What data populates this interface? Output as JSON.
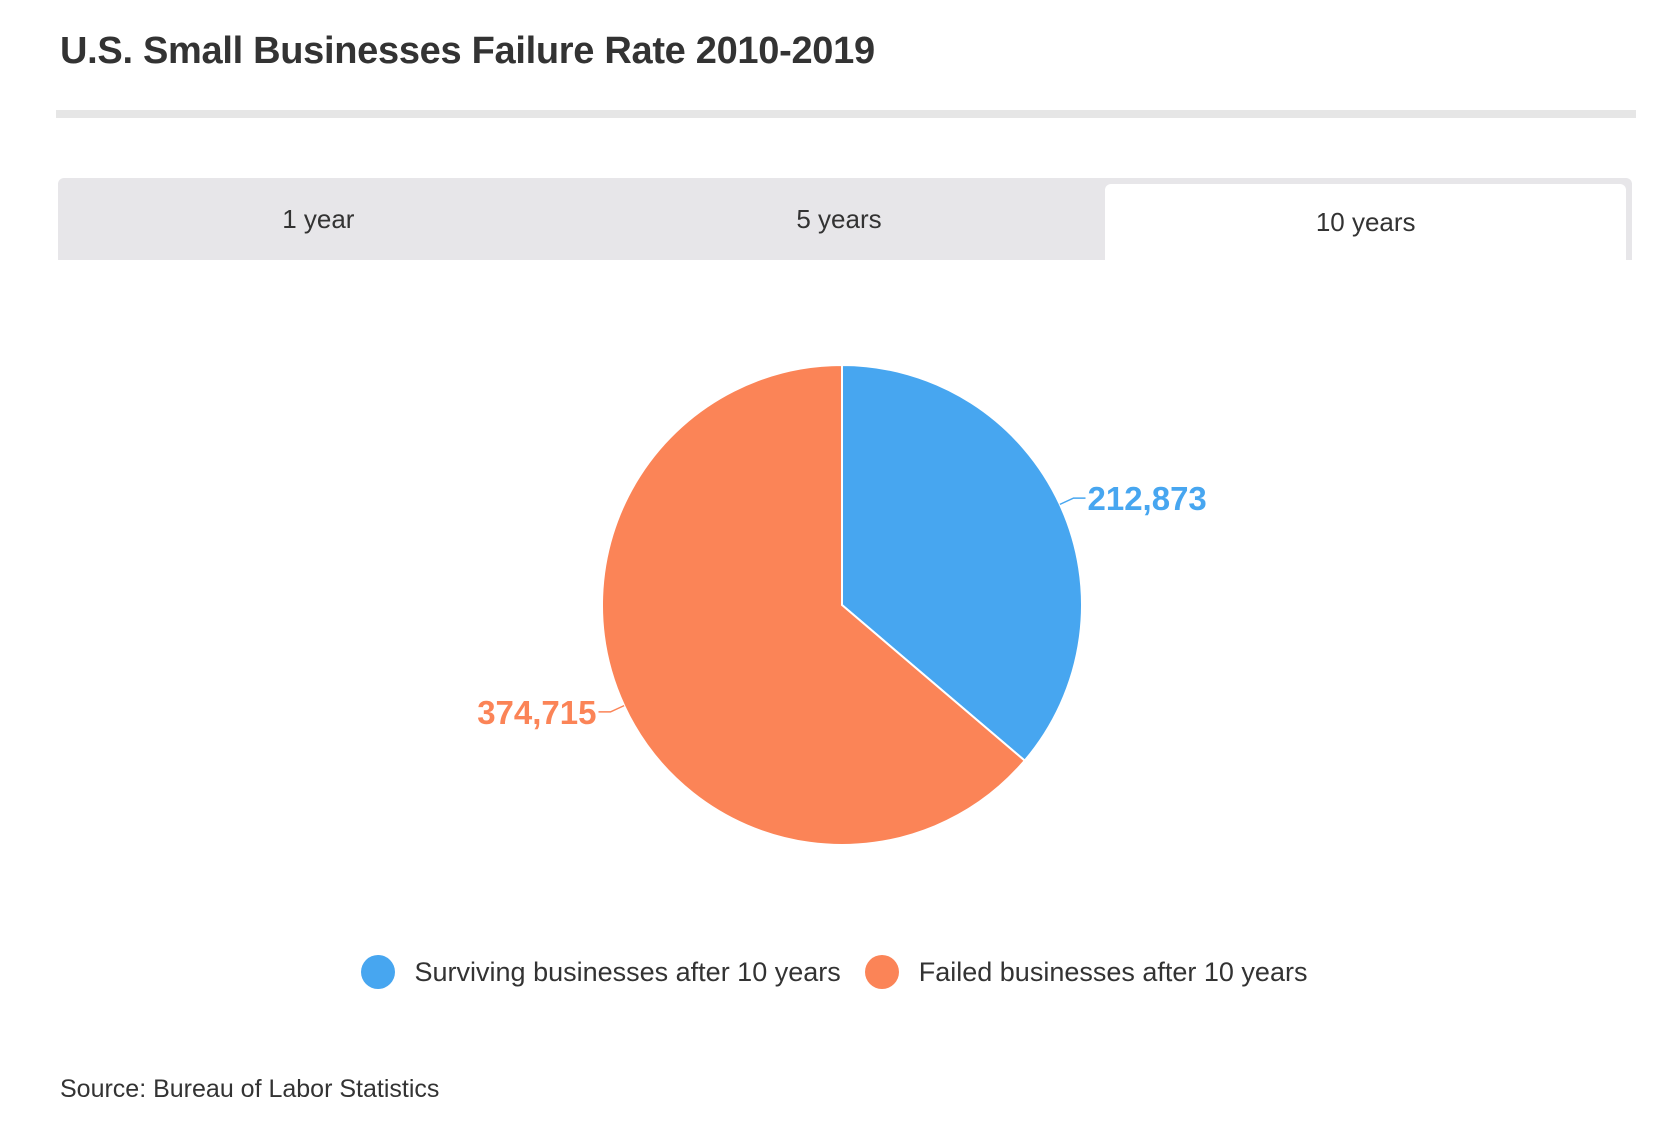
{
  "title": "U.S. Small Businesses Failure Rate 2010-2019",
  "tabs": [
    {
      "label": "1 year",
      "active": false
    },
    {
      "label": "5 years",
      "active": false
    },
    {
      "label": "10 years",
      "active": true
    }
  ],
  "source": "Source: Bureau of Labor Statistics",
  "chart_data": {
    "type": "pie",
    "title": "",
    "series": [
      {
        "name": "Surviving businesses after 10 years",
        "value": 212873,
        "label": "212,873",
        "color": "#47a6f0"
      },
      {
        "name": "Failed businesses after 10 years",
        "value": 374715,
        "label": "374,715",
        "color": "#fb8457"
      }
    ],
    "legend_position": "bottom"
  }
}
